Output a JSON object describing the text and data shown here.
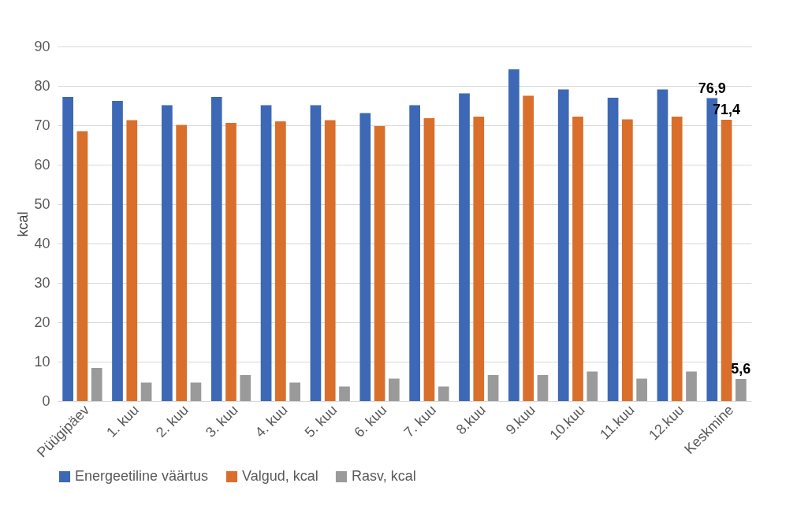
{
  "chart_data": {
    "type": "bar",
    "ylabel": "kcal",
    "categories": [
      "Püügipäev",
      "1. kuu",
      "2. kuu",
      "3. kuu",
      "4. kuu",
      "5. kuu",
      "6. kuu",
      "7. kuu",
      "8.kuu",
      "9.kuu",
      "10.kuu",
      "11.kuu",
      "12.kuu",
      "Keskmine"
    ],
    "series": [
      {
        "name": "Energeetiline väärtus",
        "color": "#3d68b5",
        "values": [
          77.2,
          76.2,
          75.1,
          77.2,
          75.1,
          75.1,
          73.1,
          75.1,
          78.1,
          84.2,
          79.1,
          77.0,
          79.1,
          76.9
        ],
        "value_labels": [
          null,
          null,
          null,
          null,
          null,
          null,
          null,
          null,
          null,
          null,
          null,
          null,
          null,
          "76,9"
        ]
      },
      {
        "name": "Valgud, kcal",
        "color": "#d96f2a",
        "values": [
          68.5,
          71.3,
          70.1,
          70.6,
          71.0,
          71.3,
          69.8,
          71.8,
          72.2,
          77.5,
          72.2,
          71.5,
          72.2,
          71.4
        ],
        "value_labels": [
          null,
          null,
          null,
          null,
          null,
          null,
          null,
          null,
          null,
          null,
          null,
          null,
          null,
          "71,4"
        ]
      },
      {
        "name": "Rasv, kcal",
        "color": "#9a9a9a",
        "values": [
          8.4,
          4.7,
          4.7,
          6.6,
          4.7,
          3.7,
          5.7,
          3.7,
          6.6,
          6.6,
          7.5,
          5.7,
          7.5,
          5.6
        ],
        "value_labels": [
          null,
          null,
          null,
          null,
          null,
          null,
          null,
          null,
          null,
          null,
          null,
          null,
          null,
          "5,6"
        ]
      }
    ],
    "ylim": [
      0,
      90
    ],
    "yticks": [
      0,
      10,
      20,
      30,
      40,
      50,
      60,
      70,
      80,
      90
    ],
    "grid": "y",
    "legend": "bottom"
  }
}
